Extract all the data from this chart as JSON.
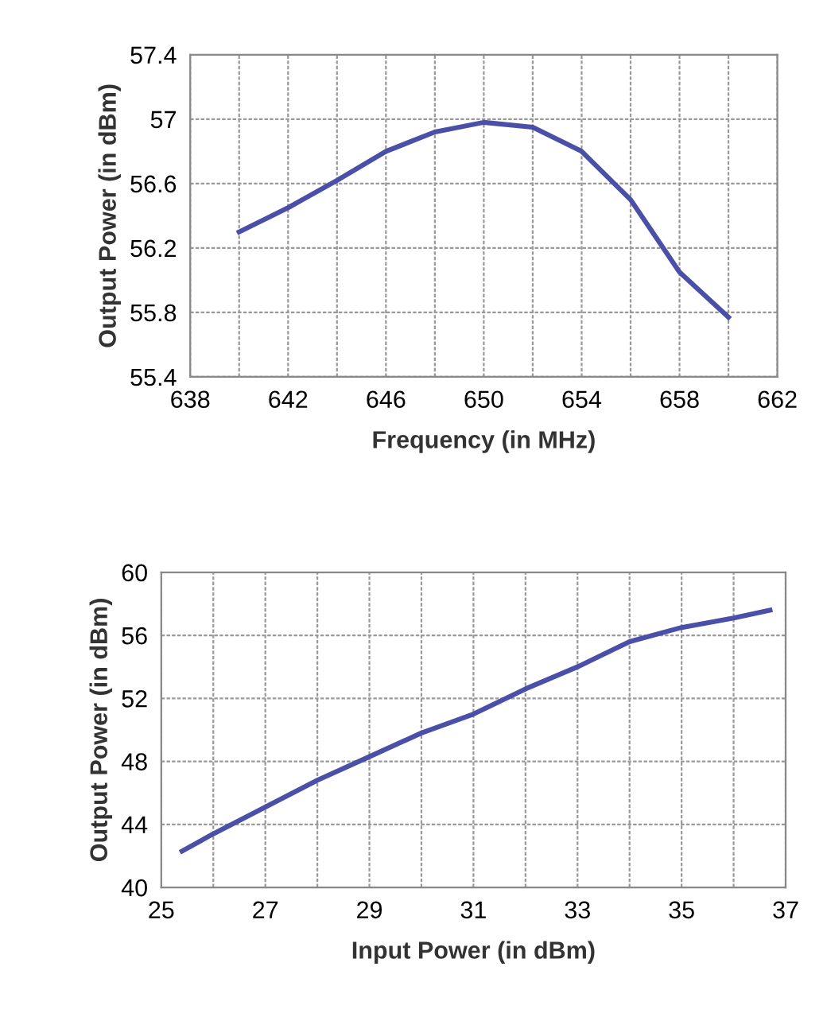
{
  "chart_data": [
    {
      "type": "line",
      "xlabel": "Frequency (in MHz)",
      "ylabel": "Output Power (in dBm)",
      "grid": true,
      "marker": "none",
      "line_style": "solid",
      "xlim": [
        638,
        662
      ],
      "ylim": [
        55.4,
        57.4
      ],
      "xticks": [
        638,
        {
          "value": 640,
          "label": null
        },
        642,
        {
          "value": 644,
          "label": null
        },
        646,
        {
          "value": 648,
          "label": null
        },
        650,
        {
          "value": 652,
          "label": null
        },
        654,
        {
          "value": 656,
          "label": null
        },
        658,
        {
          "value": 660,
          "label": null
        },
        662
      ],
      "yticks": [
        55.4,
        55.8,
        56.2,
        56.6,
        57,
        57.4
      ],
      "series": [
        {
          "color": "#4a4fa8",
          "x": [
            640,
            642,
            644,
            646,
            648,
            650,
            652,
            654,
            656,
            658,
            660
          ],
          "values": [
            56.3,
            56.45,
            56.62,
            56.8,
            56.92,
            56.98,
            56.95,
            56.8,
            56.5,
            56.05,
            55.77
          ]
        }
      ]
    },
    {
      "type": "line",
      "xlabel": "Input Power (in dBm)",
      "ylabel": "Output Power (in dBm)",
      "grid": true,
      "marker": "none",
      "line_style": "solid",
      "xlim": [
        25,
        37
      ],
      "ylim": [
        40,
        60
      ],
      "xticks": [
        25,
        {
          "value": 26,
          "label": null
        },
        27,
        {
          "value": 28,
          "label": null
        },
        29,
        {
          "value": 30,
          "label": null
        },
        31,
        {
          "value": 32,
          "label": null
        },
        33,
        {
          "value": 34,
          "label": null
        },
        35,
        {
          "value": 36,
          "label": null
        },
        37
      ],
      "yticks": [
        40,
        44,
        48,
        52,
        56,
        60
      ],
      "series": [
        {
          "color": "#4a4fa8",
          "x": [
            25.4,
            26,
            27,
            28,
            29,
            30,
            31,
            32,
            33,
            34,
            35,
            36,
            36.7
          ],
          "values": [
            42.3,
            43.4,
            45.1,
            46.8,
            48.3,
            49.8,
            51.0,
            52.6,
            54.0,
            55.6,
            56.5,
            57.1,
            57.6
          ]
        }
      ]
    }
  ]
}
